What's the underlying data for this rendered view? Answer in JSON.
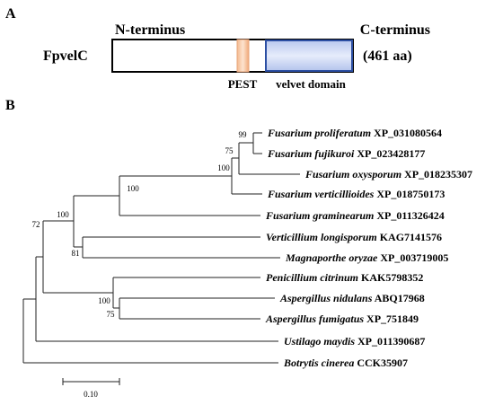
{
  "panel_a": {
    "label": "A",
    "n_terminus": "N-terminus",
    "c_terminus": "C-terminus",
    "protein": "FpvelC",
    "length": "(461 aa)",
    "pest": "PEST",
    "velvet_domain": "velvet domain"
  },
  "panel_b": {
    "label": "B",
    "taxa": [
      {
        "species": "Fusarium proliferatum",
        "accession": "XP_031080564"
      },
      {
        "species": "Fusarium fujikuroi",
        "accession": "XP_023428177"
      },
      {
        "species": "Fusarium oxysporum",
        "accession": "XP_018235307"
      },
      {
        "species": "Fusarium verticillioides",
        "accession": "XP_018750173"
      },
      {
        "species": "Fusarium graminearum",
        "accession": "XP_011326424"
      },
      {
        "species": "Verticillium longisporum",
        "accession": "KAG7141576"
      },
      {
        "species": "Magnaporthe oryzae",
        "accession": "XP_003719005"
      },
      {
        "species": "Penicillium citrinum",
        "accession": "KAK5798352"
      },
      {
        "species": "Aspergillus nidulans",
        "accession": "ABQ17968"
      },
      {
        "species": "Aspergillus fumigatus",
        "accession": "XP_751849"
      },
      {
        "species": "Ustilago maydis",
        "accession": "XP_011390687"
      },
      {
        "species": "Botrytis cinerea",
        "accession": "CCK35907"
      }
    ],
    "bootstrap": [
      99,
      75,
      100,
      100,
      100,
      81,
      72,
      100,
      75
    ],
    "scale_bar": "0.10"
  }
}
